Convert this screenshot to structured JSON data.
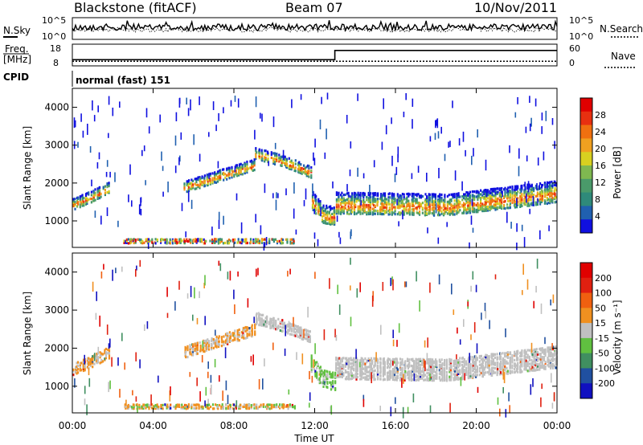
{
  "header": {
    "station": "Blackstone (fitACF)",
    "beam": "Beam 07",
    "date": "10/Nov/2011"
  },
  "top_panels": {
    "nsky_label": "N.Sky",
    "nsky_ticks": [
      "10^5",
      "10^0"
    ],
    "nsearch_label": "N.Search",
    "nsearch_ticks": [
      "10^5",
      "10^0"
    ],
    "freq_label_1": "Freq.",
    "freq_label_2": "[MHz]",
    "freq_ticks": [
      "18",
      "8"
    ],
    "nave_label": "Nave",
    "nave_ticks": [
      "60",
      "0"
    ],
    "cpid_label": "CPID",
    "cpid_value": "normal (fast) 151"
  },
  "power_panel": {
    "ylabel": "Slant Range [km]",
    "yticks": [
      "4000",
      "3000",
      "2000",
      "1000"
    ],
    "colorbar_label": "Power [dB]",
    "colorbar_ticks": [
      "28",
      "24",
      "20",
      "16",
      "12",
      "8",
      "4"
    ],
    "colors": [
      "#1010e0",
      "#2060b0",
      "#2f8a7a",
      "#4a9a6a",
      "#7fb850",
      "#d8d020",
      "#f0a020",
      "#f07010",
      "#e83010",
      "#e00000"
    ]
  },
  "velocity_panel": {
    "ylabel": "Slant Range [km]",
    "yticks": [
      "4000",
      "3000",
      "2000",
      "1000"
    ],
    "colorbar_label": "Velocity [m s⁻¹]",
    "colorbar_ticks": [
      "200",
      "100",
      "50",
      "15",
      "-15",
      "-50",
      "-100",
      "-200"
    ],
    "colors": [
      "#1010c0",
      "#2050a0",
      "#408f60",
      "#60c040",
      "#c0c0c0",
      "#f09020",
      "#f06010",
      "#e02010",
      "#e00000"
    ]
  },
  "xaxis": {
    "ticks": [
      "00:00",
      "04:00",
      "08:00",
      "12:00",
      "16:00",
      "20:00",
      "00:00"
    ],
    "label": "Time UT"
  },
  "chart_data": {
    "type": "heatmap",
    "x_unit": "hours UT",
    "xlim": [
      0,
      24
    ],
    "ylim": [
      300,
      4500
    ],
    "frequency_mhz": [
      {
        "from": 0,
        "to": 13,
        "value": 10.5
      },
      {
        "from": 13,
        "to": 24,
        "value": 15.5
      }
    ],
    "nave": [
      {
        "from": 0,
        "to": 24,
        "value": 10
      }
    ],
    "echo_regions": [
      {
        "from": 0,
        "to": 1.8,
        "center_km": [
          1450,
          1650,
          1900
        ],
        "spread_km": 300
      },
      {
        "from": 5.5,
        "to": 9,
        "center_km": [
          1900,
          2200,
          2500
        ],
        "spread_km": 300
      },
      {
        "from": 9,
        "to": 11.8,
        "center_km": [
          2800,
          2600,
          2300
        ],
        "spread_km": 300
      },
      {
        "from": 11.8,
        "to": 13,
        "center_km": [
          1600,
          1200,
          1150
        ],
        "spread_km": 500
      },
      {
        "from": 13,
        "to": 24,
        "center_km": [
          1500,
          1450,
          1800
        ],
        "spread_km": 600
      },
      {
        "from": 2.5,
        "to": 11,
        "center_km": [
          480,
          480,
          480
        ],
        "spread_km": 120
      }
    ]
  }
}
